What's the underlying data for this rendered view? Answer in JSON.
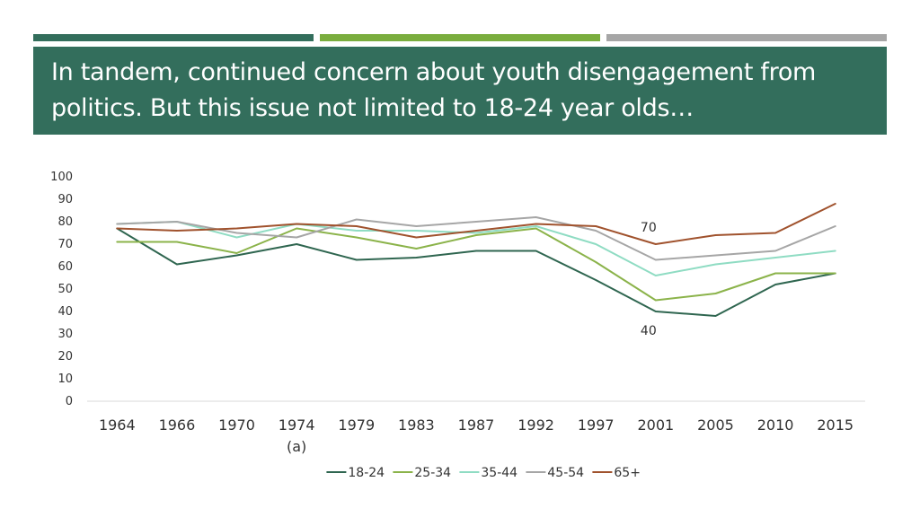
{
  "slide": {
    "title": "In tandem, continued concern about youth disengagement from politics.  But this issue not limited to 18-24 year olds…",
    "accent_colors": [
      "#336e5c",
      "#7aad3e",
      "#a6a6a6"
    ]
  },
  "chart_data": {
    "type": "line",
    "categories": [
      "1964",
      "1966",
      "1970",
      "1974",
      "1979",
      "1983",
      "1987",
      "1992",
      "1997",
      "2001",
      "2005",
      "2010",
      "2015"
    ],
    "category_sublabels": {
      "1974": "(a)"
    },
    "ylim": [
      0,
      100
    ],
    "yticks": [
      0,
      10,
      20,
      30,
      40,
      50,
      60,
      70,
      80,
      90,
      100
    ],
    "grid": false,
    "legend": "bottom",
    "series": [
      {
        "name": "18-24",
        "color": "#2f6650",
        "values": [
          77,
          61,
          65,
          70,
          63,
          64,
          67,
          67,
          54,
          40,
          38,
          52,
          57
        ]
      },
      {
        "name": "25-34",
        "color": "#8bb34a",
        "values": [
          71,
          71,
          66,
          77,
          73,
          68,
          74,
          77,
          62,
          45,
          48,
          57,
          57
        ]
      },
      {
        "name": "35-44",
        "color": "#8fdcc3",
        "values": [
          79,
          80,
          73,
          79,
          76,
          76,
          75,
          78,
          70,
          56,
          61,
          64,
          67
        ]
      },
      {
        "name": "45-54",
        "color": "#a6a6a6",
        "values": [
          79,
          80,
          75,
          73,
          81,
          78,
          80,
          82,
          76,
          63,
          65,
          67,
          78
        ]
      },
      {
        "name": "65+",
        "color": "#a0522d",
        "values": [
          77,
          76,
          77,
          79,
          78,
          73,
          76,
          79,
          78,
          70,
          74,
          75,
          88
        ]
      }
    ],
    "annotations": [
      {
        "text": "70",
        "category": "2001",
        "series": "65+",
        "placement": "above"
      },
      {
        "text": "40",
        "category": "2001",
        "series": "18-24",
        "placement": "below"
      }
    ]
  }
}
